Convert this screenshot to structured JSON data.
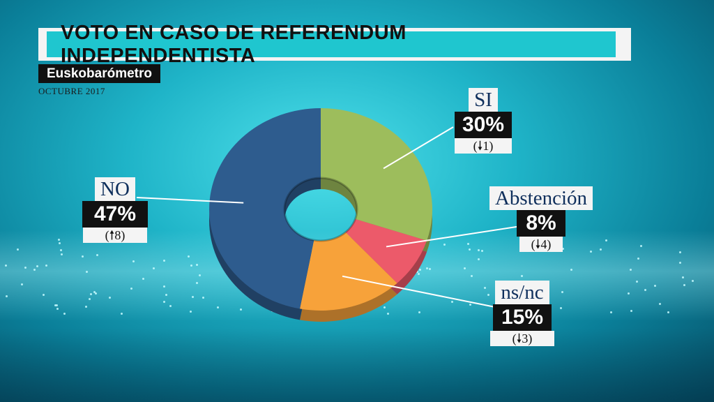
{
  "header": {
    "title": "VOTO EN CASO DE REFERENDUM INDEPENDENTISTA",
    "source": "Euskobarómetro",
    "date": "OCTUBRE 2017"
  },
  "colors": {
    "si": "#9dbd5c",
    "abstencion": "#ec5a6a",
    "nsnc": "#f7a23a",
    "no": "#2e5c8e"
  },
  "labels": {
    "si": {
      "name": "SI",
      "pct": "30%",
      "change": "(🠗1)"
    },
    "abstencion": {
      "name": "Abstención",
      "pct": "8%",
      "change": "(🠗4)"
    },
    "nsnc": {
      "name": "ns/nc",
      "pct": "15%",
      "change": "(🠗3)"
    },
    "no": {
      "name": "NO",
      "pct": "47%",
      "change": "(🠕8)"
    }
  },
  "chart_data": {
    "type": "pie",
    "title": "VOTO EN CASO DE REFERENDUM INDEPENDENTISTA",
    "categories": [
      "SI",
      "Abstención",
      "ns/nc",
      "NO"
    ],
    "values": [
      30,
      8,
      15,
      47
    ],
    "changes": [
      "-1",
      "-4",
      "-3",
      "+8"
    ],
    "unit": "%"
  }
}
